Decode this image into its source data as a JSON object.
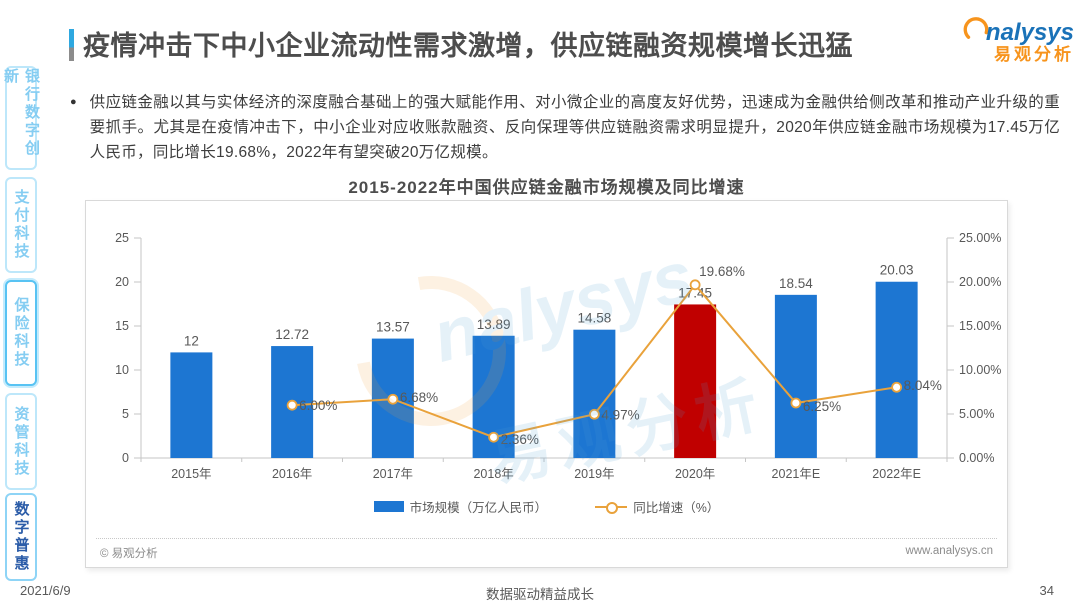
{
  "page": {
    "title": "疫情冲击下中小企业流动性需求激增，供应链融资规模增长迅猛",
    "footer": {
      "date": "2021/6/9",
      "slogan": "数据驱动精益成长",
      "page_number": "34"
    }
  },
  "logo": {
    "brand": "nalysys",
    "brand_cn": "易观分析"
  },
  "watermark": {
    "brand": "nalysys",
    "brand_cn": "易观分析"
  },
  "sidebar": {
    "items": [
      {
        "label": "银行数字创新",
        "active": false
      },
      {
        "label": "支付科技",
        "active": false
      },
      {
        "label": "保险科技",
        "active": false
      },
      {
        "label": "资管科技",
        "active": false
      },
      {
        "label": "数字普惠",
        "active": true
      }
    ]
  },
  "body": {
    "bullet_text": "供应链金融以其与实体经济的深度融合基础上的强大赋能作用、对小微企业的高度友好优势，迅速成为金融供给侧改革和推动产业升级的重要抓手。尤其是在疫情冲击下，中小企业对应收账款融资、反向保理等供应链融资需求明显提升，2020年供应链金融市场规模为17.45万亿人民币，同比增长19.68%，2022年有望突破20万亿规模。"
  },
  "chart_footer": {
    "copyright": "© 易观分析",
    "website": "www.analysys.cn"
  },
  "chart_data": {
    "type": "bar+line",
    "title": "2015-2022年中国供应链金融市场规模及同比增速",
    "categories": [
      "2015年",
      "2016年",
      "2017年",
      "2018年",
      "2019年",
      "2020年",
      "2021年E",
      "2022年E"
    ],
    "series": [
      {
        "name": "市场规模（万亿人民币）",
        "type": "bar",
        "values": [
          12,
          12.72,
          13.57,
          13.89,
          14.58,
          17.45,
          18.54,
          20.03
        ],
        "labels": [
          "12",
          "12.72",
          "13.57",
          "13.89",
          "14.58",
          "17.45",
          "18.54",
          "20.03"
        ],
        "colors": [
          "#1D76D2",
          "#1D76D2",
          "#1D76D2",
          "#1D76D2",
          "#1D76D2",
          "#C00000",
          "#1D76D2",
          "#1D76D2"
        ]
      },
      {
        "name": "同比增速（%）",
        "type": "line",
        "values": [
          null,
          6.0,
          6.68,
          2.36,
          4.97,
          19.68,
          6.25,
          8.04
        ],
        "labels": [
          null,
          "6.00%",
          "6.68%",
          "2.36%",
          "4.97%",
          "19.68%",
          "6.25%",
          "8.04%"
        ],
        "color": "#E9A23B"
      }
    ],
    "left_axis": {
      "min": 0,
      "max": 25,
      "ticks": [
        "0",
        "5",
        "10",
        "15",
        "20",
        "25"
      ]
    },
    "right_axis": {
      "min": 0,
      "max": 25,
      "ticks": [
        "0.00%",
        "5.00%",
        "10.00%",
        "15.00%",
        "20.00%",
        "25.00%"
      ]
    },
    "grid": false,
    "legend_position": "bottom"
  }
}
